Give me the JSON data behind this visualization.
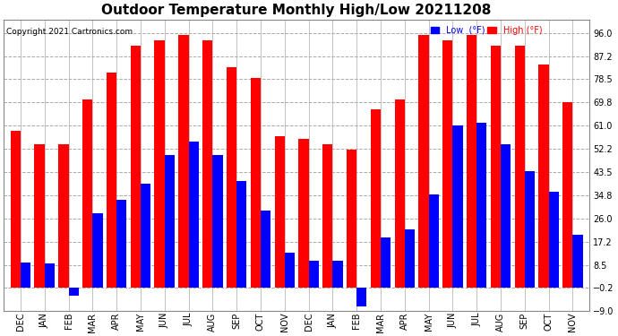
{
  "title": "Outdoor Temperature Monthly High/Low 20211208",
  "copyright": "Copyright 2021 Cartronics.com",
  "legend_low": "Low  (°F)",
  "legend_high": "High (°F)",
  "low_color": "#0000FF",
  "high_color": "#FF0000",
  "ylim": [
    -9.0,
    101.0
  ],
  "yticks": [
    -9.0,
    -0.2,
    8.5,
    17.2,
    26.0,
    34.8,
    43.5,
    52.2,
    61.0,
    69.8,
    78.5,
    87.2,
    96.0
  ],
  "months": [
    "DEC",
    "JAN",
    "FEB",
    "MAR",
    "APR",
    "MAY",
    "JUN",
    "JUL",
    "AUG",
    "SEP",
    "OCT",
    "NOV",
    "DEC",
    "JAN",
    "FEB",
    "MAR",
    "APR",
    "MAY",
    "JUN",
    "JUL",
    "AUG",
    "SEP",
    "OCT",
    "NOV"
  ],
  "high_values": [
    59.0,
    54.0,
    54.0,
    71.0,
    81.0,
    91.0,
    93.0,
    95.0,
    93.0,
    83.0,
    79.0,
    57.0,
    56.0,
    54.0,
    52.0,
    67.0,
    71.0,
    95.0,
    93.0,
    95.0,
    91.0,
    91.0,
    84.0,
    70.0
  ],
  "low_values": [
    9.5,
    9.0,
    -3.0,
    28.0,
    33.0,
    39.0,
    50.0,
    55.0,
    50.0,
    40.0,
    29.0,
    13.0,
    10.0,
    10.0,
    -7.0,
    19.0,
    22.0,
    35.0,
    61.0,
    62.0,
    54.0,
    44.0,
    36.0,
    20.0
  ],
  "background_color": "#FFFFFF",
  "grid_color": "#AAAAAA",
  "title_fontsize": 11,
  "tick_fontsize": 7,
  "bar_width": 0.42
}
